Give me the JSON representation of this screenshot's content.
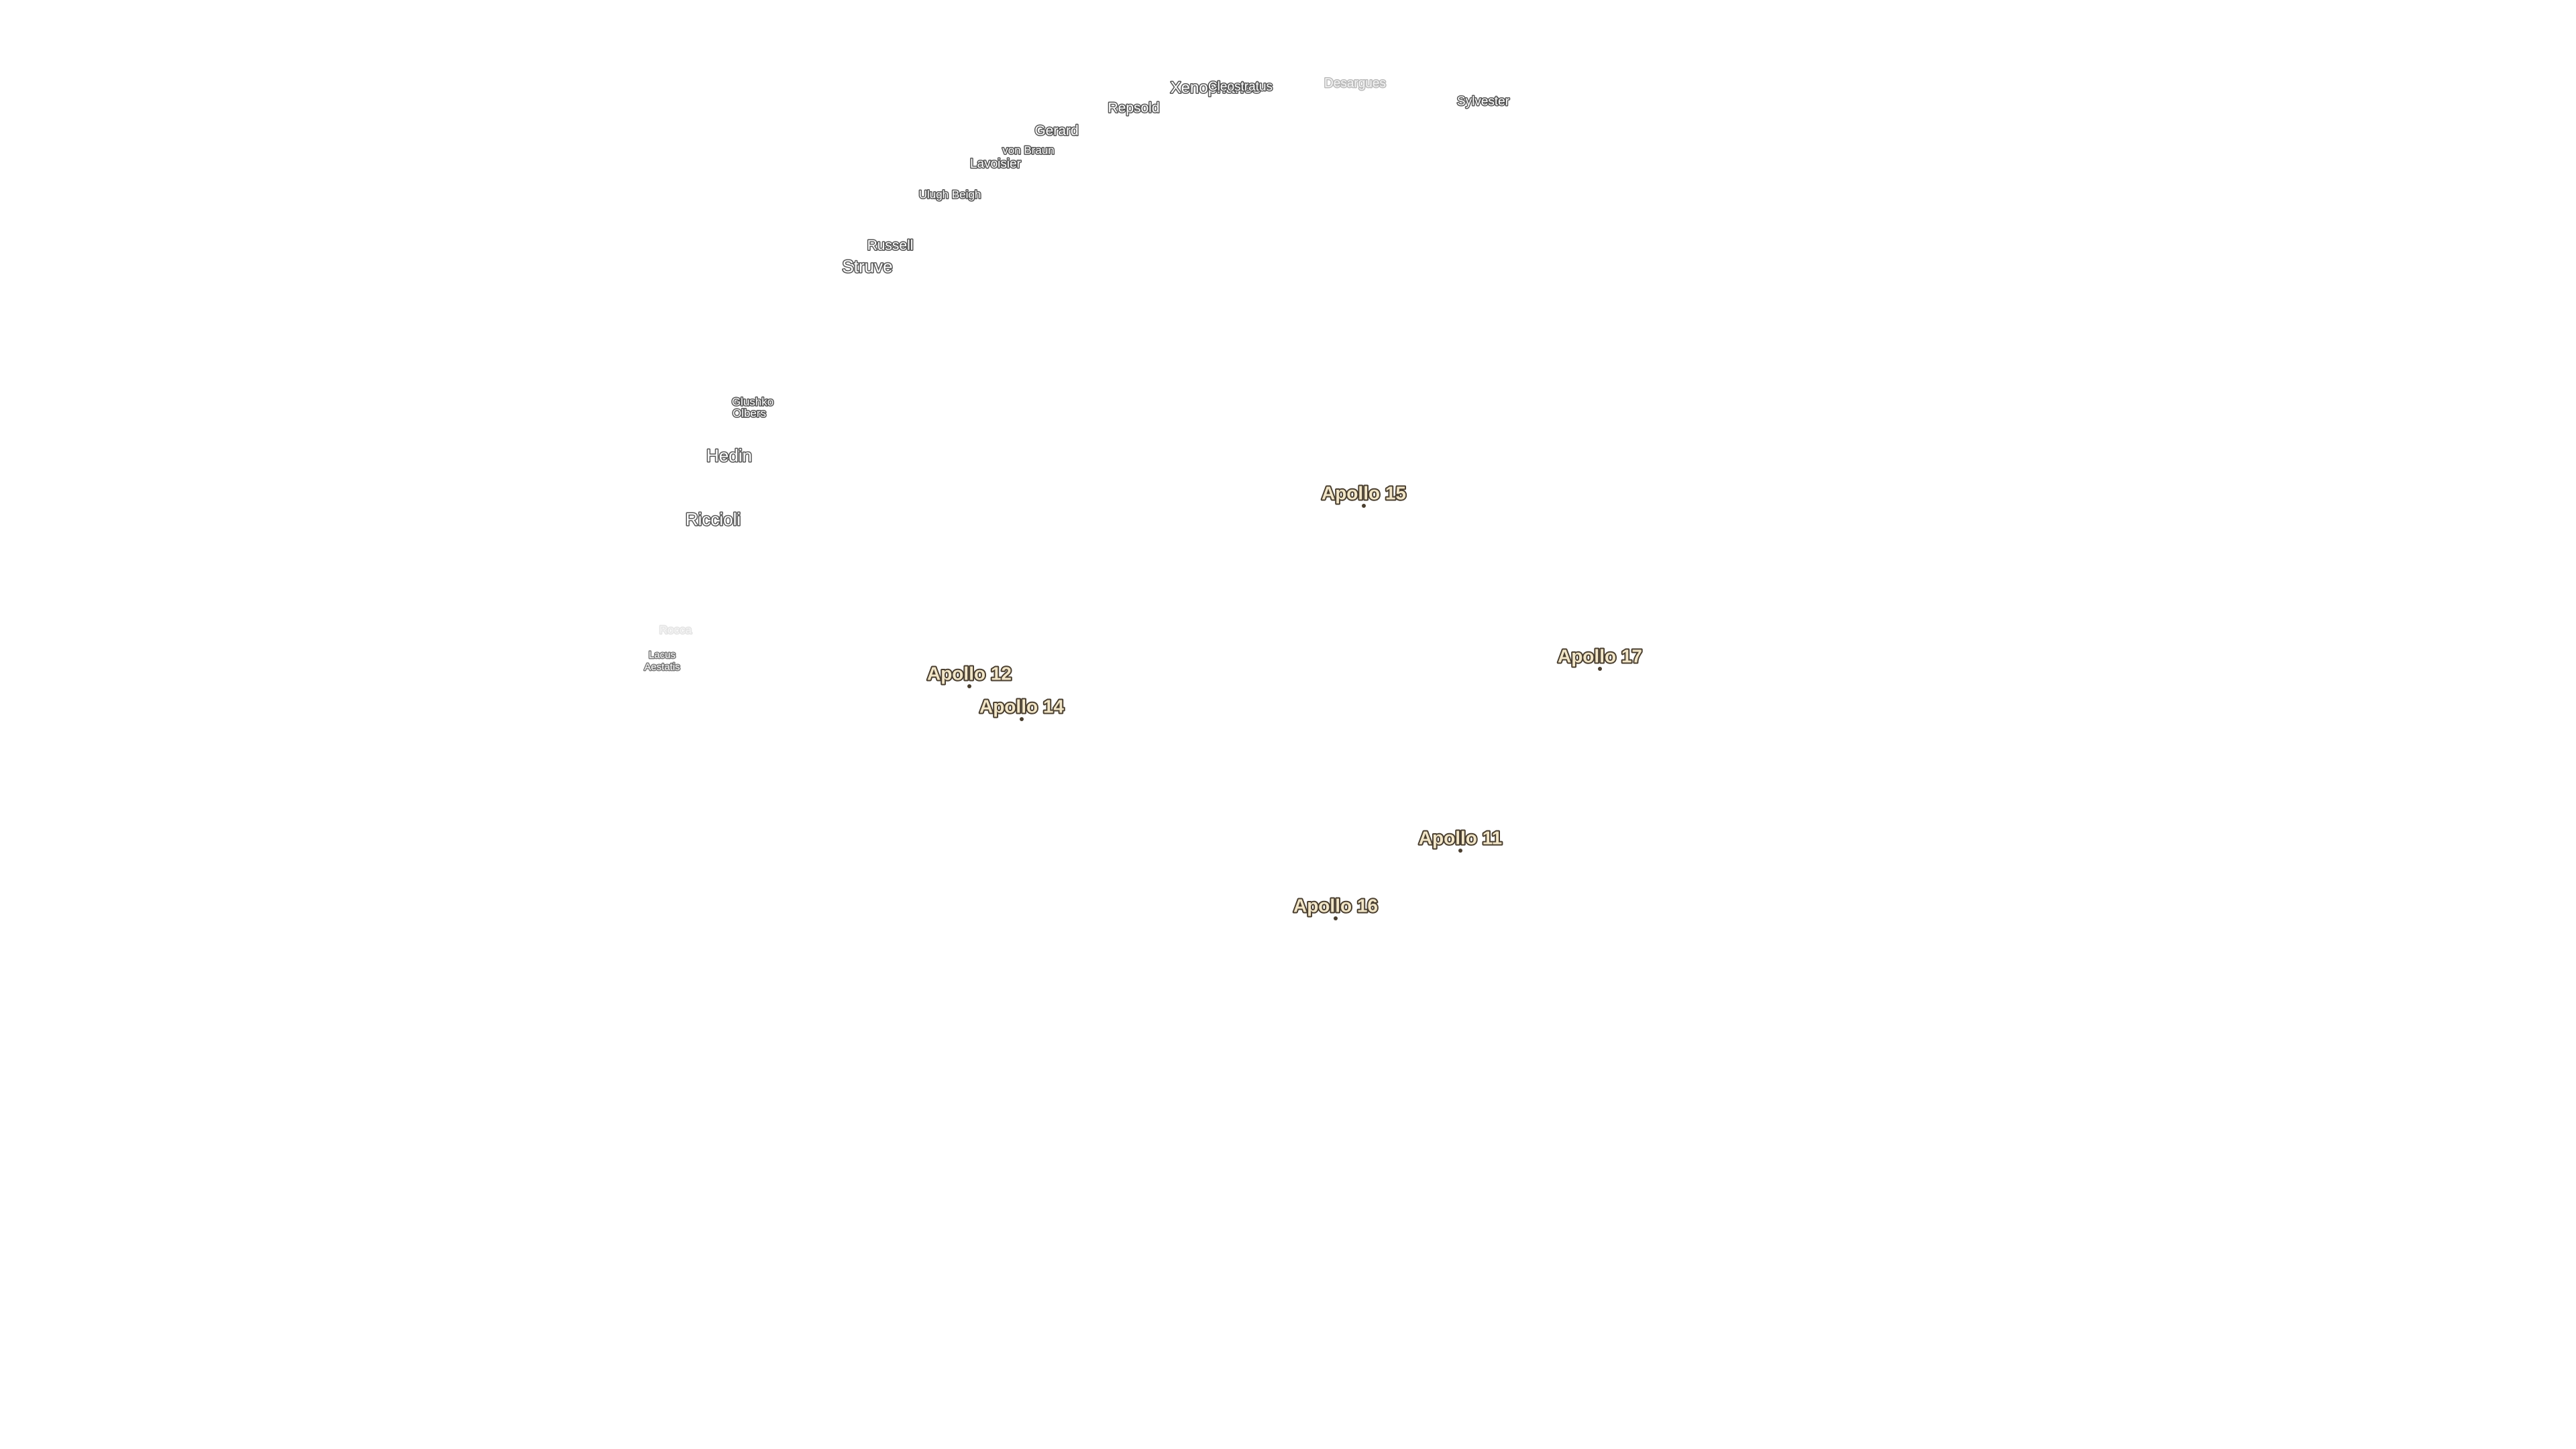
{
  "craters": [
    "Xenophanes",
    "Cleostratus",
    "Desargues",
    "Sylvester",
    "Repsold",
    "Gerard",
    "von Braun",
    "Lavoisier",
    "Ulugh Beigh",
    "Russell",
    "Struve",
    "Glushko",
    "Olbers",
    "Hedin",
    "Riccioli",
    "Rocca"
  ],
  "features": [
    {
      "lines": [
        "Lacus",
        "Aestatis"
      ]
    }
  ],
  "landing_sites": [
    "Apollo 15",
    "Apollo 12",
    "Apollo 14",
    "Apollo 17",
    "Apollo 11",
    "Apollo 16"
  ]
}
